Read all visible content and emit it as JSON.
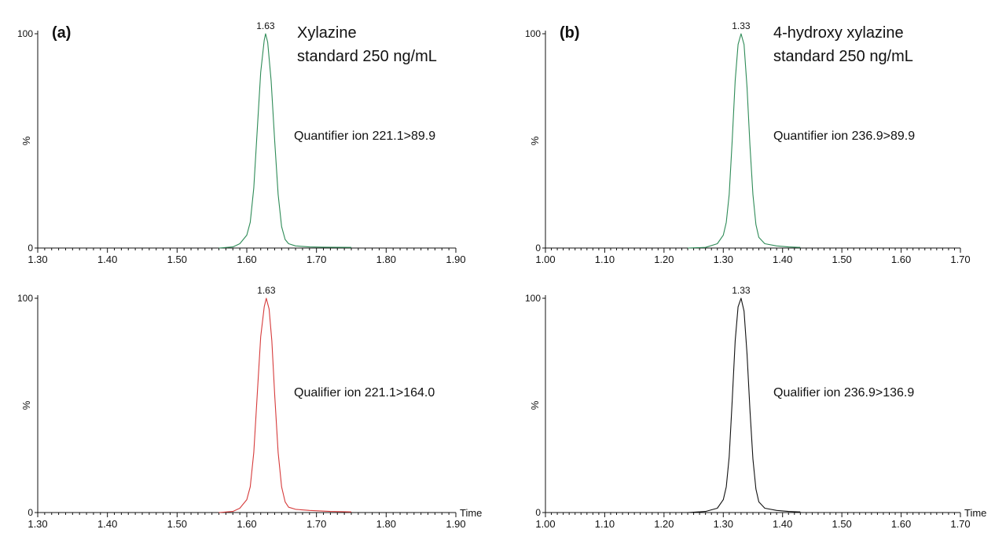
{
  "panel_labels": {
    "a": "(a)",
    "b": "(b)"
  },
  "titles": {
    "a": [
      "Xylazine",
      "standard 250 ng/mL"
    ],
    "b": [
      "4-hydroxy xylazine",
      "standard 250 ng/mL"
    ]
  },
  "colors": {
    "green": "#2e8b57",
    "red": "#d63b3b",
    "black": "#111111",
    "axis": "#111111"
  },
  "chart_data": [
    {
      "id": "a-top",
      "type": "line",
      "xlim": [
        1.3,
        1.9
      ],
      "ylim": [
        0,
        100
      ],
      "x_ticks": [
        "1.30",
        "1.40",
        "1.50",
        "1.60",
        "1.70",
        "1.80",
        "1.90"
      ],
      "y_tick_labels": [
        "100",
        "0"
      ],
      "ylabel": "%",
      "xlabel": "",
      "annotation": "Quantifier ion  221.1>89.9",
      "peak": {
        "label": "1.63",
        "x": 1.627,
        "y": 100
      },
      "series": [
        {
          "color": "green",
          "x": [
            1.56,
            1.58,
            1.59,
            1.6,
            1.605,
            1.61,
            1.615,
            1.62,
            1.625,
            1.627,
            1.63,
            1.635,
            1.64,
            1.645,
            1.65,
            1.655,
            1.66,
            1.67,
            1.69,
            1.71,
            1.75
          ],
          "y": [
            0,
            0.5,
            2,
            6,
            12,
            28,
            55,
            82,
            97,
            100,
            96,
            78,
            50,
            25,
            10,
            4,
            2,
            1,
            0.5,
            0.4,
            0.3
          ]
        }
      ]
    },
    {
      "id": "a-bottom",
      "type": "line",
      "xlim": [
        1.3,
        1.9
      ],
      "ylim": [
        0,
        100
      ],
      "x_ticks": [
        "1.30",
        "1.40",
        "1.50",
        "1.60",
        "1.70",
        "1.80",
        "1.90"
      ],
      "y_tick_labels": [
        "100",
        "0"
      ],
      "ylabel": "%",
      "xlabel": "Time",
      "annotation": "Qualifier ion  221.1>164.0",
      "peak": {
        "label": "1.63",
        "x": 1.628,
        "y": 100
      },
      "series": [
        {
          "color": "red",
          "x": [
            1.56,
            1.58,
            1.59,
            1.6,
            1.605,
            1.61,
            1.615,
            1.62,
            1.625,
            1.628,
            1.632,
            1.636,
            1.64,
            1.645,
            1.65,
            1.655,
            1.66,
            1.67,
            1.69,
            1.72,
            1.75
          ],
          "y": [
            0,
            0.5,
            2,
            6,
            12,
            28,
            55,
            82,
            96,
            100,
            95,
            80,
            55,
            28,
            12,
            5,
            2.5,
            1.5,
            1,
            0.5,
            0.3
          ]
        }
      ]
    },
    {
      "id": "b-top",
      "type": "line",
      "xlim": [
        1.0,
        1.7
      ],
      "ylim": [
        0,
        100
      ],
      "x_ticks": [
        "1.00",
        "1.10",
        "1.20",
        "1.30",
        "1.40",
        "1.50",
        "1.60",
        "1.70"
      ],
      "y_tick_labels": [
        "100",
        "0"
      ],
      "ylabel": "%",
      "xlabel": "",
      "annotation": "Quantifier ion  236.9>89.9",
      "peak": {
        "label": "1.33",
        "x": 1.33,
        "y": 100
      },
      "series": [
        {
          "color": "green",
          "x": [
            1.24,
            1.27,
            1.29,
            1.3,
            1.305,
            1.31,
            1.315,
            1.32,
            1.325,
            1.33,
            1.335,
            1.34,
            1.345,
            1.35,
            1.355,
            1.36,
            1.37,
            1.39,
            1.41,
            1.43
          ],
          "y": [
            0,
            0.3,
            2,
            6,
            12,
            25,
            50,
            78,
            95,
            100,
            95,
            75,
            48,
            25,
            11,
            5,
            2,
            1,
            0.5,
            0.3
          ]
        }
      ]
    },
    {
      "id": "b-bottom",
      "type": "line",
      "xlim": [
        1.0,
        1.7
      ],
      "ylim": [
        0,
        100
      ],
      "x_ticks": [
        "1.00",
        "1.10",
        "1.20",
        "1.30",
        "1.40",
        "1.50",
        "1.60",
        "1.70"
      ],
      "y_tick_labels": [
        "100",
        "0"
      ],
      "ylabel": "%",
      "xlabel": "Time",
      "annotation": "Qualifier ion  236.9>136.9",
      "peak": {
        "label": "1.33",
        "x": 1.33,
        "y": 100
      },
      "series": [
        {
          "color": "black",
          "x": [
            1.24,
            1.27,
            1.29,
            1.3,
            1.305,
            1.31,
            1.315,
            1.32,
            1.325,
            1.33,
            1.335,
            1.34,
            1.345,
            1.35,
            1.355,
            1.36,
            1.37,
            1.39,
            1.41,
            1.43
          ],
          "y": [
            0,
            0.5,
            2,
            6,
            12,
            26,
            52,
            80,
            96,
            100,
            94,
            74,
            48,
            25,
            11,
            5,
            2,
            1,
            0.5,
            0.3
          ]
        }
      ]
    }
  ]
}
